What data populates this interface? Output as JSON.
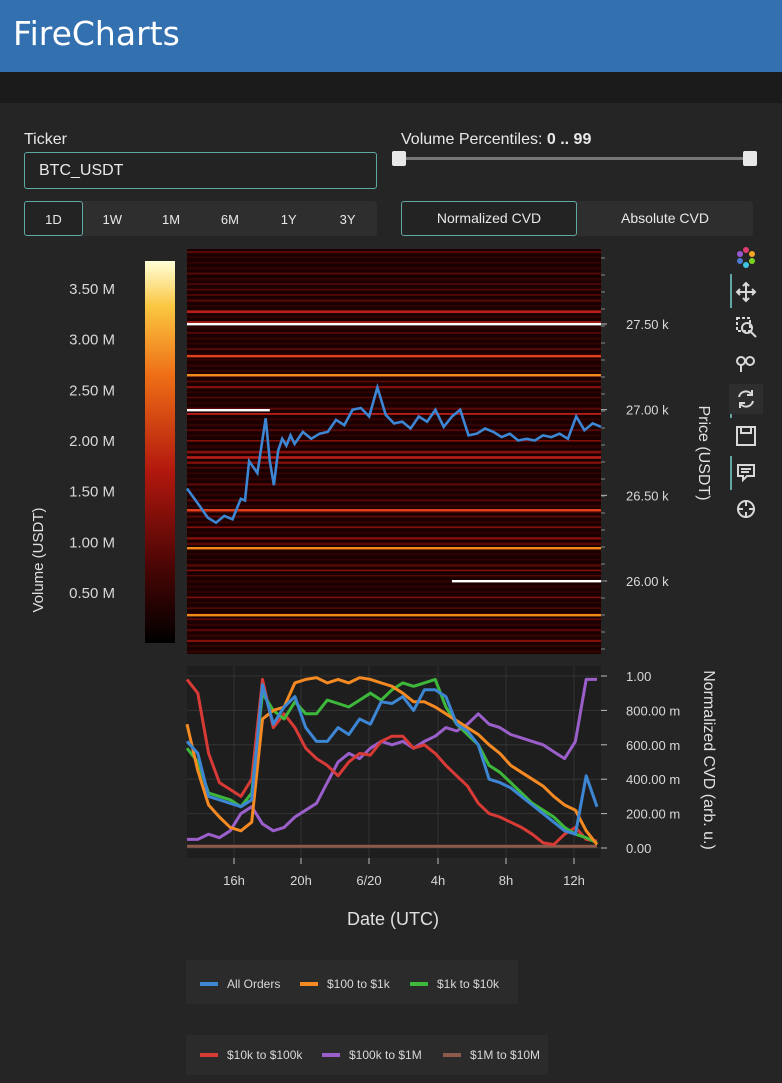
{
  "app": {
    "title": "FireCharts"
  },
  "controls": {
    "ticker_label": "Ticker",
    "ticker_value": "BTC_USDT",
    "volume_percentiles_label": "Volume Percentiles:",
    "volume_percentiles_value": "0 .. 99",
    "volume_percentiles_range": [
      0,
      99
    ],
    "time_ranges": [
      "1D",
      "1W",
      "1M",
      "6M",
      "1Y",
      "3Y"
    ],
    "time_range_selected": "1D",
    "cvd_modes": [
      "Normalized CVD",
      "Absolute CVD"
    ],
    "cvd_mode_selected": "Normalized CVD"
  },
  "toolbar": {
    "icons": [
      "plotly-logo-icon",
      "pan-icon",
      "box-zoom-icon",
      "wheel-zoom-icon",
      "reset-icon",
      "save-icon",
      "hover-icon",
      "crosshair-icon"
    ]
  },
  "colors": {
    "accent": "#5fa8a4",
    "header": "#3270b0",
    "price_line": "#3c86d4"
  },
  "chart_data": [
    {
      "type": "heatmap",
      "ylabel": "Price (USDT)",
      "yticks": [
        "27.50 k",
        "27.00 k",
        "26.50 k",
        "26.00 k"
      ],
      "ytick_values": [
        27500,
        27000,
        26500,
        26000
      ],
      "colorbar_label": "Volume (USDT)",
      "colorbar_ticks": [
        "3.50 M",
        "3.00 M",
        "2.50 M",
        "2.00 M",
        "1.50 M",
        "1.00 M",
        "0.50 M"
      ],
      "colorbar_values": [
        3500000,
        3000000,
        2500000,
        2000000,
        1500000,
        1000000,
        500000
      ],
      "price_series": {
        "name": "Price",
        "x": [
          0,
          3,
          5,
          7,
          9,
          11,
          13,
          14,
          15,
          17,
          19,
          20,
          21,
          22,
          23,
          24,
          25,
          26,
          28,
          30,
          32,
          34,
          36,
          38,
          40,
          42,
          44,
          46,
          48,
          50,
          52,
          54,
          56,
          58,
          60,
          62,
          64,
          66,
          68,
          70,
          72,
          74,
          76,
          78,
          80,
          82,
          84,
          86,
          88,
          90,
          92,
          94,
          96,
          98,
          100
        ],
        "y": [
          26540,
          26440,
          26370,
          26340,
          26380,
          26360,
          26480,
          26470,
          26700,
          26630,
          26950,
          26700,
          26560,
          26760,
          26830,
          26790,
          26850,
          26800,
          26870,
          26830,
          26860,
          26870,
          26940,
          26910,
          27000,
          27010,
          26960,
          27130,
          26970,
          26920,
          26930,
          26890,
          26960,
          26930,
          27000,
          26900,
          26960,
          27000,
          26850,
          26860,
          26890,
          26870,
          26840,
          26860,
          26820,
          26830,
          26820,
          26850,
          26840,
          26860,
          26830,
          26960,
          26880,
          26920,
          26900
        ]
      }
    },
    {
      "type": "line",
      "xlabel": "Date (UTC)",
      "ylabel": "Normalized CVD (arb. u.)",
      "xticks": [
        "16h",
        "20h",
        "6/20",
        "4h",
        "8h",
        "12h"
      ],
      "yticks": [
        "1.00",
        "800.00 m",
        "600.00 m",
        "400.00 m",
        "200.00 m",
        "0.00"
      ],
      "ylim": [
        0,
        1
      ],
      "series": [
        {
          "name": "All Orders",
          "color": "#3c86d4",
          "values": [
            0.62,
            0.55,
            0.3,
            0.28,
            0.26,
            0.24,
            0.28,
            0.95,
            0.72,
            0.82,
            0.88,
            0.7,
            0.62,
            0.62,
            0.7,
            0.66,
            0.75,
            0.72,
            0.85,
            0.84,
            0.88,
            0.8,
            0.92,
            0.92,
            0.88,
            0.72,
            0.68,
            0.6,
            0.4,
            0.38,
            0.35,
            0.3,
            0.25,
            0.2,
            0.15,
            0.1,
            0.08,
            0.42,
            0.24
          ]
        },
        {
          "name": "$100 to $1k",
          "color": "#f58a22",
          "values": [
            0.72,
            0.45,
            0.25,
            0.18,
            0.12,
            0.1,
            0.15,
            0.75,
            0.8,
            0.82,
            0.96,
            0.98,
            0.99,
            0.96,
            0.98,
            0.96,
            0.99,
            0.98,
            0.96,
            0.94,
            0.9,
            0.85,
            0.85,
            0.82,
            0.78,
            0.74,
            0.7,
            0.66,
            0.6,
            0.55,
            0.48,
            0.44,
            0.4,
            0.36,
            0.3,
            0.25,
            0.22,
            0.1,
            0.02
          ]
        },
        {
          "name": "$1k to $10k",
          "color": "#3db83a",
          "values": [
            0.58,
            0.5,
            0.32,
            0.3,
            0.28,
            0.24,
            0.32,
            0.9,
            0.8,
            0.75,
            0.85,
            0.78,
            0.78,
            0.86,
            0.84,
            0.82,
            0.86,
            0.9,
            0.86,
            0.92,
            0.96,
            0.94,
            0.96,
            0.98,
            0.82,
            0.72,
            0.66,
            0.6,
            0.48,
            0.44,
            0.38,
            0.32,
            0.26,
            0.22,
            0.18,
            0.12,
            0.08,
            0.06,
            0.03
          ]
        },
        {
          "name": "$10k to $100k",
          "color": "#d83a35",
          "values": [
            0.98,
            0.9,
            0.55,
            0.38,
            0.34,
            0.3,
            0.4,
            0.98,
            0.7,
            0.78,
            0.7,
            0.58,
            0.52,
            0.48,
            0.42,
            0.5,
            0.55,
            0.54,
            0.62,
            0.65,
            0.65,
            0.58,
            0.6,
            0.55,
            0.48,
            0.42,
            0.36,
            0.26,
            0.2,
            0.18,
            0.15,
            0.12,
            0.08,
            0.03,
            0.02,
            0.08,
            0.12,
            0.05,
            0.04
          ]
        },
        {
          "name": "$100k to $1M",
          "color": "#9b5fcc",
          "values": [
            0.05,
            0.05,
            0.08,
            0.06,
            0.1,
            0.2,
            0.24,
            0.14,
            0.1,
            0.12,
            0.18,
            0.22,
            0.26,
            0.38,
            0.5,
            0.55,
            0.52,
            0.58,
            0.62,
            0.6,
            0.62,
            0.58,
            0.62,
            0.65,
            0.7,
            0.68,
            0.72,
            0.78,
            0.72,
            0.7,
            0.66,
            0.64,
            0.62,
            0.6,
            0.56,
            0.52,
            0.62,
            0.98,
            0.98
          ]
        },
        {
          "name": "$1M to $10M",
          "color": "#8c5a4a",
          "values": [
            0.01,
            0.01,
            0.01,
            0.01,
            0.01,
            0.01,
            0.01,
            0.01,
            0.01,
            0.01,
            0.01,
            0.01,
            0.01,
            0.01,
            0.01,
            0.01,
            0.01,
            0.01,
            0.01,
            0.01,
            0.01,
            0.01,
            0.01,
            0.01,
            0.01,
            0.01,
            0.01,
            0.01,
            0.01,
            0.01,
            0.01,
            0.01,
            0.01,
            0.01,
            0.01,
            0.01,
            0.01,
            0.01,
            0.01
          ]
        }
      ],
      "legend_position": "bottom"
    }
  ]
}
